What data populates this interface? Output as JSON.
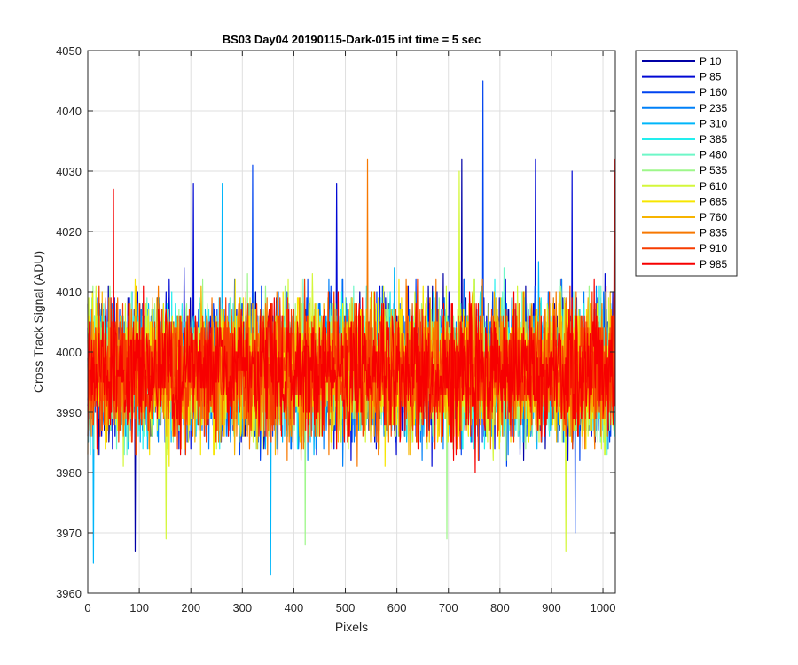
{
  "chart_data": {
    "type": "line",
    "title": "BS03 Day04 20190115-Dark-015 int time = 5 sec",
    "xlabel": "Pixels",
    "ylabel": "Cross Track Signal (ADU)",
    "xlim": [
      0,
      1024
    ],
    "ylim": [
      3960,
      4050
    ],
    "xticks": [
      0,
      100,
      200,
      300,
      400,
      500,
      600,
      700,
      800,
      900,
      1000
    ],
    "yticks": [
      3960,
      3970,
      3980,
      3990,
      4000,
      4010,
      4020,
      4030,
      4040,
      4050
    ],
    "grid": true,
    "legend_position": "outside-right",
    "noise_center": 3997,
    "noise_typical_range": [
      3976,
      4018
    ],
    "series": [
      {
        "name": "P 10",
        "color": "#0000a6"
      },
      {
        "name": "P 85",
        "color": "#0008d4"
      },
      {
        "name": "P 160",
        "color": "#0044f0"
      },
      {
        "name": "P 235",
        "color": "#0080f8"
      },
      {
        "name": "P 310",
        "color": "#00b6fa"
      },
      {
        "name": "P 385",
        "color": "#22eeee"
      },
      {
        "name": "P 460",
        "color": "#6ef7c8"
      },
      {
        "name": "P 535",
        "color": "#9ef78a"
      },
      {
        "name": "P 610",
        "color": "#d4f73a"
      },
      {
        "name": "P 685",
        "color": "#f7e600"
      },
      {
        "name": "P 760",
        "color": "#f7b400"
      },
      {
        "name": "P 835",
        "color": "#f77800"
      },
      {
        "name": "P 910",
        "color": "#f73c00"
      },
      {
        "name": "P 985",
        "color": "#f70000"
      }
    ],
    "spikes": [
      {
        "series": "P 160",
        "x": 767,
        "y": 4045
      },
      {
        "series": "P 160",
        "x": 320,
        "y": 4031
      },
      {
        "series": "P 835",
        "x": 543,
        "y": 4032
      },
      {
        "series": "P 985",
        "x": 1022,
        "y": 4032
      },
      {
        "series": "P 10",
        "x": 726,
        "y": 4032
      },
      {
        "series": "P 85",
        "x": 869,
        "y": 4032
      },
      {
        "series": "P 610",
        "x": 721,
        "y": 4030
      },
      {
        "series": "P 985",
        "x": 50,
        "y": 4027
      },
      {
        "series": "P 310",
        "x": 261,
        "y": 4028
      },
      {
        "series": "P 85",
        "x": 205,
        "y": 4028
      },
      {
        "series": "P 85",
        "x": 483,
        "y": 4028
      },
      {
        "series": "P 85",
        "x": 940,
        "y": 4030
      },
      {
        "series": "P 310",
        "x": 355,
        "y": 3963
      },
      {
        "series": "P 310",
        "x": 11,
        "y": 3965
      },
      {
        "series": "P 10",
        "x": 92,
        "y": 3967
      },
      {
        "series": "P 610",
        "x": 928,
        "y": 3967
      },
      {
        "series": "P 535",
        "x": 422,
        "y": 3968
      },
      {
        "series": "P 610",
        "x": 152,
        "y": 3969
      },
      {
        "series": "P 160",
        "x": 946,
        "y": 3970
      },
      {
        "series": "P 535",
        "x": 697,
        "y": 3969
      }
    ]
  }
}
